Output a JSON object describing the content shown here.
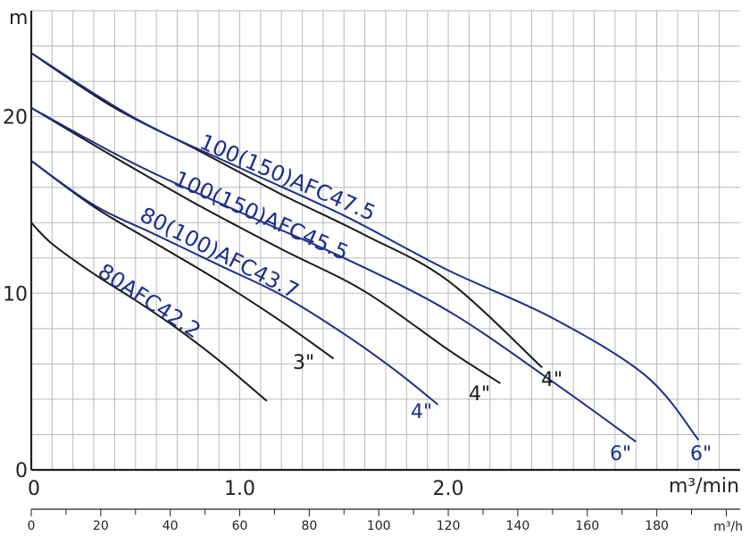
{
  "chart_data": {
    "type": "line",
    "title": "",
    "x_axis": {
      "unit": "m³/min",
      "range": [
        0,
        3.4
      ],
      "ticks": [
        {
          "value": 0,
          "label": "0"
        },
        {
          "value": 1.0,
          "label": "1.0"
        },
        {
          "value": 2.0,
          "label": "2.0"
        }
      ]
    },
    "x2_axis": {
      "unit": "m³/h",
      "range": [
        0,
        204
      ],
      "ticks": [
        {
          "value": 0,
          "label": "0"
        },
        {
          "value": 20,
          "label": "20"
        },
        {
          "value": 40,
          "label": "40"
        },
        {
          "value": 60,
          "label": "60"
        },
        {
          "value": 80,
          "label": "80"
        },
        {
          "value": 100,
          "label": "100"
        },
        {
          "value": 120,
          "label": "120"
        },
        {
          "value": 140,
          "label": "140"
        },
        {
          "value": 160,
          "label": "160"
        },
        {
          "value": 180,
          "label": "180"
        }
      ]
    },
    "y_axis": {
      "unit": "m",
      "range": [
        0,
        26
      ],
      "ticks": [
        {
          "value": 0,
          "label": "0"
        },
        {
          "value": 10,
          "label": "10"
        },
        {
          "value": 20,
          "label": "20"
        }
      ]
    },
    "grid": true,
    "series": [
      {
        "name": "80AFC42.2",
        "size": "3\"",
        "color": "#1a1a1a",
        "x": [
          0,
          0.1,
          0.3,
          0.5,
          0.7,
          0.9,
          1.13
        ],
        "y": [
          14.0,
          12.8,
          11.1,
          9.6,
          8.0,
          6.2,
          3.9
        ]
      },
      {
        "name": "80(100)AFC43.7",
        "size": "3\"",
        "color": "#1a1a1a",
        "x": [
          0,
          0.3,
          0.6,
          0.9,
          1.2,
          1.45
        ],
        "y": [
          17.5,
          14.9,
          12.8,
          10.7,
          8.4,
          6.3
        ]
      },
      {
        "name": "80(100)AFC43.7",
        "size": "4\"",
        "color": "#1c2f8a",
        "x": [
          0,
          0.3,
          0.6,
          0.9,
          1.2,
          1.5,
          1.75,
          1.95
        ],
        "y": [
          17.5,
          15.0,
          13.3,
          11.6,
          9.9,
          7.7,
          5.6,
          3.7
        ]
      },
      {
        "name": "100(150)AFC45.5",
        "size": "4\"",
        "color": "#1a1a1a",
        "x": [
          0,
          0.4,
          0.8,
          1.2,
          1.6,
          2.0,
          2.25
        ],
        "y": [
          20.5,
          17.7,
          15.0,
          12.5,
          10.1,
          6.8,
          4.9
        ]
      },
      {
        "name": "100(150)AFC45.5",
        "size": "6\"",
        "color": "#1c2f8a",
        "x": [
          0,
          0.5,
          1.0,
          1.5,
          2.0,
          2.5,
          2.9
        ],
        "y": [
          20.5,
          17.3,
          14.6,
          12.0,
          9.0,
          5.0,
          1.6
        ]
      },
      {
        "name": "100(150)AFC47.5",
        "size": "4\"",
        "color": "#1a1a1a",
        "x": [
          0,
          0.4,
          0.8,
          1.2,
          1.6,
          2.0,
          2.45
        ],
        "y": [
          23.6,
          20.5,
          18.1,
          15.6,
          13.3,
          10.7,
          5.8
        ]
      },
      {
        "name": "100(150)AFC47.5",
        "size": "6\"",
        "color": "#1c2f8a",
        "x": [
          0,
          0.5,
          1.0,
          1.5,
          2.0,
          2.5,
          2.95,
          3.2
        ],
        "y": [
          23.6,
          19.9,
          17.1,
          14.4,
          11.3,
          8.6,
          5.3,
          1.7
        ]
      }
    ],
    "curve_labels": [
      {
        "text": "100(150)AFC47.5",
        "color": "#1c2f8a"
      },
      {
        "text": "100(150)AFC45.5",
        "color": "#1c2f8a"
      },
      {
        "text": "80(100)AFC43.7",
        "color": "#1c2f8a"
      },
      {
        "text": "80AFC42.2",
        "color": "#1c2f8a"
      }
    ],
    "size_labels": [
      {
        "text": "3\"",
        "color": "#1a1a1a"
      },
      {
        "text": "4\"",
        "color": "#1c2f8a"
      },
      {
        "text": "4\"",
        "color": "#1a1a1a"
      },
      {
        "text": "4\"",
        "color": "#1a1a1a"
      },
      {
        "text": "6\"",
        "color": "#1c2f8a"
      },
      {
        "text": "6\"",
        "color": "#1c2f8a"
      }
    ]
  }
}
